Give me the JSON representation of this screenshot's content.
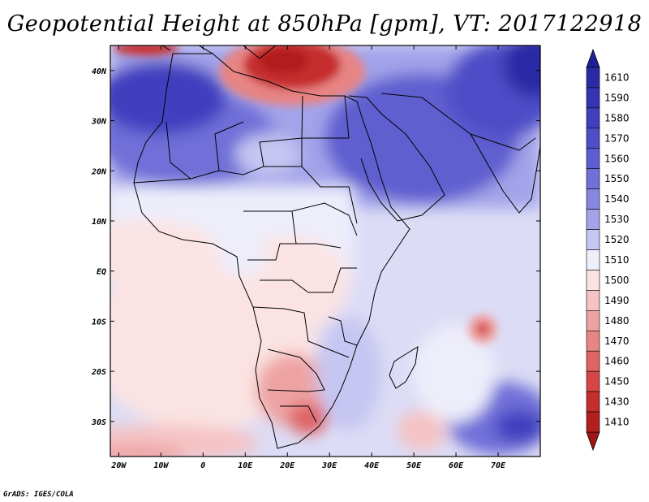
{
  "title": "Geopotential Height at 850hPa [gpm], VT: 2017122918",
  "footer": "GrADS: IGES/COLA",
  "map": {
    "lon_range": [
      -22,
      80
    ],
    "lat_range": [
      -37,
      45
    ],
    "lon_ticks": [
      {
        "value": -20,
        "label": "20W"
      },
      {
        "value": -10,
        "label": "10W"
      },
      {
        "value": 0,
        "label": "0"
      },
      {
        "value": 10,
        "label": "10E"
      },
      {
        "value": 20,
        "label": "20E"
      },
      {
        "value": 30,
        "label": "30E"
      },
      {
        "value": 40,
        "label": "40E"
      },
      {
        "value": 50,
        "label": "50E"
      },
      {
        "value": 60,
        "label": "60E"
      },
      {
        "value": 70,
        "label": "70E"
      }
    ],
    "lat_ticks": [
      {
        "value": 40,
        "label": "40N"
      },
      {
        "value": 30,
        "label": "30N"
      },
      {
        "value": 20,
        "label": "20N"
      },
      {
        "value": 10,
        "label": "10N"
      },
      {
        "value": 0,
        "label": "EQ"
      },
      {
        "value": -10,
        "label": "10S"
      },
      {
        "value": -20,
        "label": "20S"
      },
      {
        "value": -30,
        "label": "30S"
      }
    ]
  },
  "colorbar": {
    "levels": [
      "1610",
      "1590",
      "1580",
      "1570",
      "1560",
      "1550",
      "1540",
      "1530",
      "1520",
      "1510",
      "1500",
      "1490",
      "1480",
      "1470",
      "1460",
      "1450",
      "1430",
      "1410"
    ],
    "colors": [
      "#2a2aa6",
      "#3434b4",
      "#4040bf",
      "#4e4ec8",
      "#5e5ed0",
      "#7070d8",
      "#8787e0",
      "#a3a3ea",
      "#c6c6f2",
      "#eeeefb",
      "#fbe3e3",
      "#f5c3c3",
      "#eea3a3",
      "#e78484",
      "#df6464",
      "#d64646",
      "#c62e2e",
      "#b21f1f"
    ],
    "top_arrow_color": "#1e1e98",
    "bottom_arrow_color": "#a01515"
  }
}
